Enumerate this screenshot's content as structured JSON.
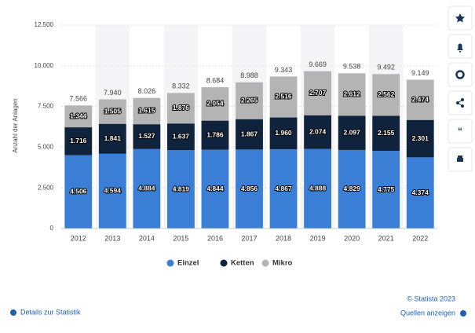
{
  "chart_data": {
    "type": "stacked_bar",
    "y_axis_label": "Anzahl der Anlagen",
    "categories": [
      "2012",
      "2013",
      "2014",
      "2015",
      "2016",
      "2017",
      "2018",
      "2019",
      "2020",
      "2021",
      "2022"
    ],
    "series": [
      {
        "name": "Einzel",
        "color": "#3a7fd5",
        "values": [
          4506,
          4594,
          4884,
          4819,
          4844,
          4856,
          4867,
          4888,
          4829,
          4775,
          4374
        ],
        "value_labels": [
          "4.506",
          "4.594",
          "4.884",
          "4.819",
          "4.844",
          "4.856",
          "4.867",
          "4.888",
          "4.829",
          "4.775",
          "4.374"
        ]
      },
      {
        "name": "Ketten",
        "color": "#10233d",
        "values": [
          1716,
          1841,
          1527,
          1637,
          1786,
          1867,
          1960,
          2074,
          2097,
          2155,
          2301
        ],
        "value_labels": [
          "1.716",
          "1.841",
          "1.527",
          "1.637",
          "1.786",
          "1.867",
          "1.960",
          "2.074",
          "2.097",
          "2.155",
          "2.301"
        ]
      },
      {
        "name": "Mikro",
        "color": "#b4b4b4",
        "values": [
          1344,
          1505,
          1615,
          1876,
          2054,
          2265,
          2516,
          2707,
          2612,
          2562,
          2474
        ],
        "value_labels": [
          "1.344",
          "1.505",
          "1.615",
          "1.876",
          "2.054",
          "2.265",
          "2.516",
          "2.707",
          "2.612",
          "2.562",
          "2.474"
        ]
      }
    ],
    "totals": {
      "values": [
        7566,
        7940,
        8026,
        8332,
        8684,
        8988,
        9343,
        9669,
        9538,
        9492,
        9149
      ],
      "value_labels": [
        "7.566",
        "7.940",
        "8.026",
        "8.332",
        "8.684",
        "8.988",
        "9.343",
        "9.669",
        "9.538",
        "9.492",
        "9.149"
      ]
    },
    "ylim": [
      0,
      12500
    ],
    "yticks": [
      0,
      {
        "value": 2500,
        "label": "2.500"
      },
      {
        "value": 5000,
        "label": "5.000"
      },
      {
        "value": 7500,
        "label": "7.500"
      },
      {
        "value": 10000,
        "label": "10.000"
      },
      {
        "value": 12500,
        "label": "12.500"
      }
    ],
    "grid": true,
    "legend": "bottom"
  },
  "footer": {
    "copyright": "© Statista 2023",
    "details": "Details zur Statistik",
    "sources": "Quellen anzeigen"
  }
}
